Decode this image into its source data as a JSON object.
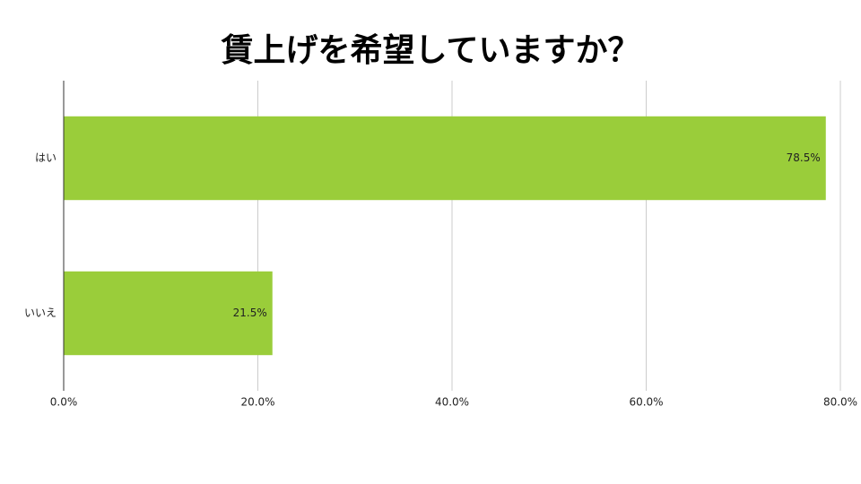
{
  "chart_data": {
    "type": "bar",
    "orientation": "horizontal",
    "title": "賃上げを希望していますか？",
    "categories": [
      "はい",
      "いいえ"
    ],
    "values": [
      78.5,
      21.5
    ],
    "value_labels": [
      "78.5%",
      "21.5%"
    ],
    "color": "#9acd3a",
    "xlim": [
      0,
      80
    ],
    "xticks": [
      {
        "value": 0,
        "label": "0.0%"
      },
      {
        "value": 20,
        "label": "20.0%"
      },
      {
        "value": 40,
        "label": "40.0%"
      },
      {
        "value": 60,
        "label": "60.0%"
      },
      {
        "value": 80,
        "label": "80.0%"
      }
    ],
    "grid": true
  }
}
